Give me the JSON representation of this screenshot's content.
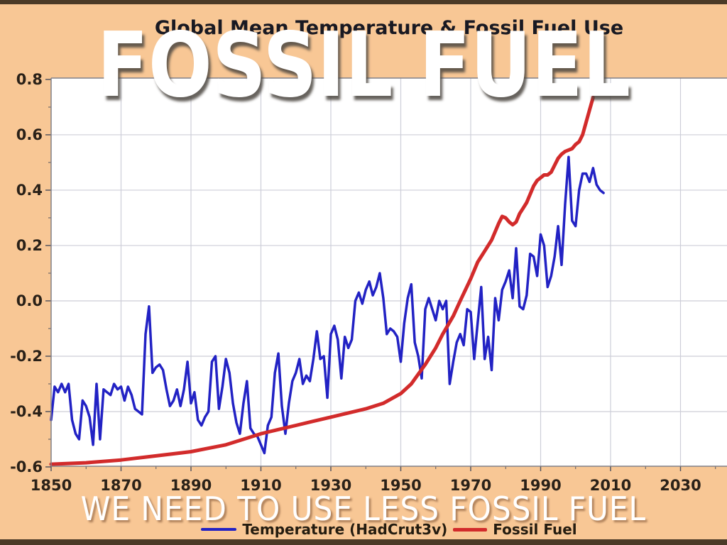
{
  "slide": {
    "overlay_title": "FOSSIL FUEL",
    "overlay_caption": "WE NEED TO USE LESS FOSSIL FUEL"
  },
  "chart": {
    "title": "Global Mean Temperature & Fossil Fuel Use",
    "background_color": "#F8C795",
    "plot_background": "#FFFFFF",
    "frame_color": "#4B3A27",
    "grid_color": "#CDCED8",
    "spine_color": "#80808A",
    "tick_label_color": "#2A2118"
  },
  "chart_data": {
    "type": "line",
    "title": "Global Mean Temperature & Fossil Fuel Use",
    "xlabel": "",
    "ylabel": "",
    "xlim": [
      1850,
      2043.3
    ],
    "ylim": [
      -0.5975,
      0.805
    ],
    "grid": true,
    "legend_position": "bottom",
    "x_ticks": [
      1850,
      1870,
      1890,
      1910,
      1930,
      1950,
      1970,
      1990,
      2010,
      2030
    ],
    "x_minor_ticks": [
      1860,
      1880,
      1900,
      1920,
      1940,
      1960,
      1980,
      2000,
      2020,
      2040
    ],
    "y_ticks": [
      0.8,
      0.6,
      0.4,
      0.2,
      0.0,
      -0.2,
      -0.4,
      -0.6
    ],
    "y_minor_ticks": [
      0.7,
      0.5,
      0.3,
      0.1,
      -0.1,
      -0.3,
      -0.5
    ],
    "series": [
      {
        "name": "Temperature (HadCrut3v)",
        "color": "#2222C4",
        "width": 3.5,
        "x_start": 1850,
        "x_step": 1,
        "values": [
          -0.43,
          -0.31,
          -0.33,
          -0.3,
          -0.33,
          -0.3,
          -0.43,
          -0.48,
          -0.5,
          -0.36,
          -0.38,
          -0.42,
          -0.52,
          -0.3,
          -0.5,
          -0.32,
          -0.33,
          -0.34,
          -0.3,
          -0.32,
          -0.31,
          -0.36,
          -0.31,
          -0.34,
          -0.39,
          -0.4,
          -0.41,
          -0.12,
          -0.02,
          -0.26,
          -0.24,
          -0.23,
          -0.25,
          -0.32,
          -0.38,
          -0.36,
          -0.32,
          -0.38,
          -0.32,
          -0.22,
          -0.37,
          -0.33,
          -0.43,
          -0.45,
          -0.42,
          -0.4,
          -0.22,
          -0.2,
          -0.39,
          -0.31,
          -0.21,
          -0.26,
          -0.37,
          -0.44,
          -0.48,
          -0.37,
          -0.29,
          -0.46,
          -0.48,
          -0.49,
          -0.52,
          -0.55,
          -0.45,
          -0.42,
          -0.26,
          -0.19,
          -0.38,
          -0.48,
          -0.37,
          -0.29,
          -0.26,
          -0.21,
          -0.3,
          -0.27,
          -0.29,
          -0.21,
          -0.11,
          -0.21,
          -0.2,
          -0.35,
          -0.12,
          -0.09,
          -0.14,
          -0.28,
          -0.13,
          -0.17,
          -0.14,
          0.0,
          0.03,
          -0.01,
          0.04,
          0.07,
          0.02,
          0.05,
          0.1,
          0.01,
          -0.12,
          -0.1,
          -0.11,
          -0.13,
          -0.22,
          -0.08,
          0.01,
          0.06,
          -0.15,
          -0.2,
          -0.28,
          -0.03,
          0.01,
          -0.03,
          -0.07,
          0.0,
          -0.03,
          0.0,
          -0.3,
          -0.22,
          -0.15,
          -0.12,
          -0.16,
          -0.03,
          -0.04,
          -0.21,
          -0.08,
          0.05,
          -0.21,
          -0.13,
          -0.25,
          0.01,
          -0.07,
          0.04,
          0.07,
          0.11,
          0.01,
          0.19,
          -0.02,
          -0.03,
          0.02,
          0.17,
          0.16,
          0.09,
          0.24,
          0.2,
          0.05,
          0.09,
          0.16,
          0.27,
          0.13,
          0.35,
          0.52,
          0.29,
          0.27,
          0.4,
          0.46,
          0.46,
          0.43,
          0.48,
          0.42,
          0.4,
          0.39
        ]
      },
      {
        "name": "Fossil Fuel",
        "color": "#D22B2B",
        "width": 5,
        "points": [
          [
            1850,
            -0.59
          ],
          [
            1860,
            -0.585
          ],
          [
            1870,
            -0.575
          ],
          [
            1880,
            -0.56
          ],
          [
            1890,
            -0.545
          ],
          [
            1900,
            -0.52
          ],
          [
            1905,
            -0.5
          ],
          [
            1910,
            -0.48
          ],
          [
            1915,
            -0.465
          ],
          [
            1920,
            -0.45
          ],
          [
            1925,
            -0.435
          ],
          [
            1930,
            -0.42
          ],
          [
            1935,
            -0.405
          ],
          [
            1940,
            -0.39
          ],
          [
            1945,
            -0.37
          ],
          [
            1950,
            -0.335
          ],
          [
            1953,
            -0.3
          ],
          [
            1955,
            -0.265
          ],
          [
            1957,
            -0.23
          ],
          [
            1960,
            -0.17
          ],
          [
            1962,
            -0.12
          ],
          [
            1965,
            -0.055
          ],
          [
            1967,
            0.0
          ],
          [
            1970,
            0.08
          ],
          [
            1972,
            0.14
          ],
          [
            1974,
            0.18
          ],
          [
            1976,
            0.22
          ],
          [
            1978,
            0.28
          ],
          [
            1979,
            0.305
          ],
          [
            1980,
            0.3
          ],
          [
            1981,
            0.285
          ],
          [
            1982,
            0.275
          ],
          [
            1983,
            0.285
          ],
          [
            1984,
            0.315
          ],
          [
            1985,
            0.335
          ],
          [
            1986,
            0.355
          ],
          [
            1987,
            0.385
          ],
          [
            1988,
            0.415
          ],
          [
            1989,
            0.435
          ],
          [
            1990,
            0.445
          ],
          [
            1991,
            0.455
          ],
          [
            1992,
            0.455
          ],
          [
            1993,
            0.465
          ],
          [
            1994,
            0.49
          ],
          [
            1995,
            0.515
          ],
          [
            1996,
            0.53
          ],
          [
            1997,
            0.54
          ],
          [
            1998,
            0.545
          ],
          [
            1999,
            0.55
          ],
          [
            2000,
            0.565
          ],
          [
            2001,
            0.575
          ],
          [
            2002,
            0.6
          ],
          [
            2003,
            0.645
          ],
          [
            2004,
            0.69
          ],
          [
            2005,
            0.735
          ]
        ]
      }
    ]
  }
}
